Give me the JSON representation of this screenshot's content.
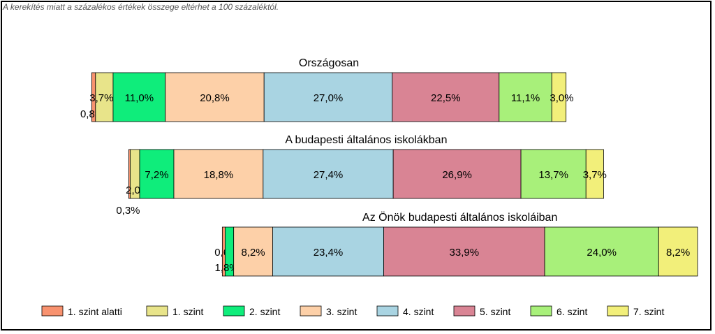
{
  "note": "A kerekítés miatt a  százalékos értékek összege eltérhet a 100 százaléktól.",
  "chart_data": {
    "type": "bar",
    "orientation": "horizontal-stacked-100",
    "levels": [
      "1. szint alatti",
      "1. szint",
      "2. szint",
      "3. szint",
      "4. szint",
      "5. szint",
      "6. szint",
      "7. szint"
    ],
    "colors": [
      "#f8926f",
      "#e8e48a",
      "#0fed7b",
      "#fdd0a8",
      "#a9d4e2",
      "#d98494",
      "#a8f07a",
      "#f2ef7a"
    ],
    "groups": [
      {
        "title": "Országosan",
        "values": [
          0.8,
          3.7,
          11.0,
          20.8,
          27.0,
          22.5,
          11.1,
          3.0
        ],
        "labels": [
          "0,8%",
          "3,7%",
          "11,0%",
          "20,8%",
          "27,0%",
          "22,5%",
          "11,1%",
          "3,0%"
        ]
      },
      {
        "title": "A budapesti általános iskolákban",
        "values": [
          0.3,
          2.0,
          7.2,
          18.8,
          27.4,
          26.9,
          13.7,
          3.7
        ],
        "labels": [
          "0,3%",
          "2,0%",
          "7,2%",
          "18,8%",
          "27,4%",
          "26,9%",
          "13,7%",
          "3,7%"
        ]
      },
      {
        "title": "Az Önök budapesti általános iskoláiban",
        "values": [
          0.6,
          0.0,
          1.8,
          8.2,
          23.4,
          33.9,
          24.0,
          8.2
        ],
        "labels": [
          "0,6%",
          "",
          "1,8%",
          "8,2%",
          "23,4%",
          "33,9%",
          "24,0%",
          "8,2%"
        ]
      }
    ],
    "legend_position": "bottom"
  }
}
